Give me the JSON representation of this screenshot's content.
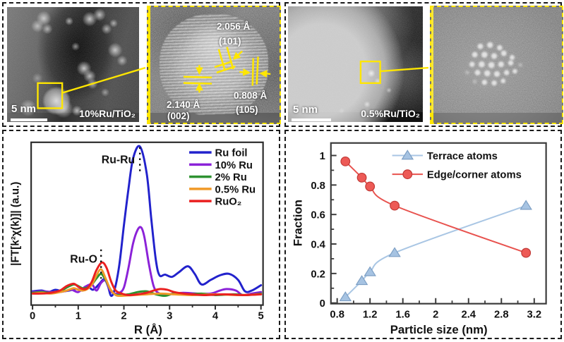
{
  "figure": {
    "accent_yellow": "#ffe600",
    "panels": {
      "tem_10ru": {
        "scale_bar": "5 nm",
        "sample_label": "10%Ru/TiO₂"
      },
      "hrtem_10ru": {
        "lattice_annotations": [
          {
            "spacing": "2.056 Å",
            "plane": "(101)"
          },
          {
            "spacing": "0.808 Å",
            "plane": "(105)"
          },
          {
            "spacing": "2.140 Å",
            "plane": "(002)"
          }
        ]
      },
      "tem_05ru": {
        "scale_bar": "5 nm",
        "sample_label": "0.5%Ru/TiO₂"
      },
      "haadf_05ru": {}
    }
  },
  "chart_data": [
    {
      "type": "line",
      "title": "",
      "xlabel": "R (Å)",
      "ylabel": "|FT[k²χ(k)]| (a.u.)",
      "xlim": [
        0,
        5
      ],
      "ylim": [
        0,
        1.05
      ],
      "xticks": [
        0,
        1,
        2,
        3,
        4,
        5
      ],
      "grid": false,
      "legend_position": "top-right",
      "annotations": [
        {
          "text": "Ru-Ru",
          "x": 2.35,
          "style": "dotted-vline"
        },
        {
          "text": "Ru-O",
          "x": 1.5,
          "style": "dotted-vline"
        }
      ],
      "series": [
        {
          "name": "Ru foil",
          "color": "#2222cc",
          "points": [
            [
              0,
              0.045
            ],
            [
              0.2,
              0.05
            ],
            [
              0.35,
              0.04
            ],
            [
              0.5,
              0.055
            ],
            [
              0.65,
              0.045
            ],
            [
              0.8,
              0.05
            ],
            [
              0.95,
              0.06
            ],
            [
              1.1,
              0.05
            ],
            [
              1.2,
              0.08
            ],
            [
              1.32,
              0.055
            ],
            [
              1.45,
              0.09
            ],
            [
              1.57,
              0.125
            ],
            [
              1.65,
              0.08
            ],
            [
              1.72,
              0.015
            ],
            [
              1.8,
              0.06
            ],
            [
              1.9,
              0.22
            ],
            [
              2.0,
              0.48
            ],
            [
              2.1,
              0.72
            ],
            [
              2.2,
              0.92
            ],
            [
              2.35,
              1.0
            ],
            [
              2.5,
              0.82
            ],
            [
              2.6,
              0.52
            ],
            [
              2.7,
              0.25
            ],
            [
              2.78,
              0.15
            ],
            [
              2.9,
              0.155
            ],
            [
              3.05,
              0.14
            ],
            [
              3.2,
              0.17
            ],
            [
              3.4,
              0.21
            ],
            [
              3.55,
              0.16
            ],
            [
              3.7,
              0.09
            ],
            [
              3.9,
              0.12
            ],
            [
              4.1,
              0.15
            ],
            [
              4.3,
              0.16
            ],
            [
              4.5,
              0.12
            ],
            [
              4.65,
              0.045
            ],
            [
              4.8,
              0.05
            ],
            [
              5,
              0.085
            ]
          ]
        },
        {
          "name": "10% Ru",
          "color": "#8b22d8",
          "points": [
            [
              0,
              0.04
            ],
            [
              0.25,
              0.045
            ],
            [
              0.5,
              0.038
            ],
            [
              0.7,
              0.045
            ],
            [
              0.85,
              0.055
            ],
            [
              1.0,
              0.04
            ],
            [
              1.15,
              0.075
            ],
            [
              1.3,
              0.09
            ],
            [
              1.4,
              0.05
            ],
            [
              1.5,
              0.1
            ],
            [
              1.6,
              0.115
            ],
            [
              1.7,
              0.05
            ],
            [
              1.8,
              0.03
            ],
            [
              1.9,
              0.035
            ],
            [
              2.0,
              0.07
            ],
            [
              2.1,
              0.2
            ],
            [
              2.2,
              0.36
            ],
            [
              2.3,
              0.45
            ],
            [
              2.38,
              0.465
            ],
            [
              2.45,
              0.4
            ],
            [
              2.55,
              0.22
            ],
            [
              2.65,
              0.08
            ],
            [
              2.75,
              0.035
            ],
            [
              2.9,
              0.025
            ],
            [
              3.1,
              0.03
            ],
            [
              3.3,
              0.035
            ],
            [
              3.6,
              0.03
            ],
            [
              3.9,
              0.03
            ],
            [
              4.1,
              0.05
            ],
            [
              4.25,
              0.06
            ],
            [
              4.45,
              0.05
            ],
            [
              4.6,
              0.02
            ],
            [
              4.8,
              0.03
            ],
            [
              5,
              0.04
            ]
          ]
        },
        {
          "name": "2% Ru",
          "color": "#2d9230",
          "points": [
            [
              0,
              0.035
            ],
            [
              0.2,
              0.04
            ],
            [
              0.4,
              0.035
            ],
            [
              0.6,
              0.045
            ],
            [
              0.75,
              0.07
            ],
            [
              0.9,
              0.09
            ],
            [
              1.0,
              0.08
            ],
            [
              1.1,
              0.065
            ],
            [
              1.2,
              0.07
            ],
            [
              1.3,
              0.09
            ],
            [
              1.4,
              0.13
            ],
            [
              1.5,
              0.16
            ],
            [
              1.6,
              0.12
            ],
            [
              1.7,
              0.06
            ],
            [
              1.8,
              0.025
            ],
            [
              1.9,
              0.02
            ],
            [
              2.1,
              0.025
            ],
            [
              2.3,
              0.04
            ],
            [
              2.5,
              0.045
            ],
            [
              2.7,
              0.025
            ],
            [
              2.9,
              0.015
            ],
            [
              3.1,
              0.03
            ],
            [
              3.4,
              0.025
            ],
            [
              3.7,
              0.03
            ],
            [
              4.0,
              0.02
            ],
            [
              4.4,
              0.025
            ],
            [
              4.7,
              0.02
            ],
            [
              5,
              0.03
            ]
          ]
        },
        {
          "name": "0.5% Ru",
          "color": "#f09a28",
          "points": [
            [
              0,
              0.03
            ],
            [
              0.2,
              0.035
            ],
            [
              0.4,
              0.03
            ],
            [
              0.6,
              0.04
            ],
            [
              0.75,
              0.05
            ],
            [
              0.9,
              0.065
            ],
            [
              1.0,
              0.055
            ],
            [
              1.1,
              0.05
            ],
            [
              1.2,
              0.06
            ],
            [
              1.3,
              0.09
            ],
            [
              1.4,
              0.15
            ],
            [
              1.5,
              0.19
            ],
            [
              1.6,
              0.13
            ],
            [
              1.7,
              0.06
            ],
            [
              1.8,
              0.025
            ],
            [
              1.9,
              0.015
            ],
            [
              2.2,
              0.02
            ],
            [
              2.5,
              0.025
            ],
            [
              2.8,
              0.03
            ],
            [
              3.1,
              0.025
            ],
            [
              3.5,
              0.02
            ],
            [
              4.0,
              0.025
            ],
            [
              4.5,
              0.02
            ],
            [
              5,
              0.025
            ]
          ]
        },
        {
          "name": "RuO₂",
          "color": "#ea2020",
          "points": [
            [
              0,
              0.03
            ],
            [
              0.2,
              0.03
            ],
            [
              0.4,
              0.035
            ],
            [
              0.6,
              0.05
            ],
            [
              0.75,
              0.08
            ],
            [
              0.9,
              0.095
            ],
            [
              1.0,
              0.075
            ],
            [
              1.1,
              0.06
            ],
            [
              1.2,
              0.065
            ],
            [
              1.3,
              0.11
            ],
            [
              1.4,
              0.185
            ],
            [
              1.52,
              0.235
            ],
            [
              1.62,
              0.2
            ],
            [
              1.72,
              0.11
            ],
            [
              1.82,
              0.05
            ],
            [
              1.95,
              0.03
            ],
            [
              2.1,
              0.02
            ],
            [
              2.3,
              0.025
            ],
            [
              2.5,
              0.035
            ],
            [
              2.65,
              0.05
            ],
            [
              2.8,
              0.06
            ],
            [
              2.95,
              0.055
            ],
            [
              3.1,
              0.04
            ],
            [
              3.3,
              0.03
            ],
            [
              3.5,
              0.025
            ],
            [
              3.8,
              0.02
            ],
            [
              4.2,
              0.025
            ],
            [
              4.6,
              0.02
            ],
            [
              5,
              0.025
            ]
          ]
        }
      ]
    },
    {
      "type": "scatter-line",
      "title": "",
      "xlabel": "Particle size (nm)",
      "ylabel": "Fraction",
      "xlim": [
        0.7,
        3.35
      ],
      "ylim": [
        0,
        1.09
      ],
      "xticks": [
        0.8,
        1.2,
        1.6,
        2,
        2.4,
        2.8,
        3.2
      ],
      "yticks": [
        0,
        0.2,
        0.4,
        0.6,
        0.8,
        1
      ],
      "grid": false,
      "legend_position": "top-center",
      "x": [
        0.9,
        1.1,
        1.2,
        1.5,
        3.1
      ],
      "series": [
        {
          "name": "Terrace atoms",
          "marker": "triangle",
          "color": "#a9c6e4",
          "marker_fill": "#a6c3e2",
          "marker_edge": "#7d9fc4",
          "values": [
            0.04,
            0.15,
            0.21,
            0.34,
            0.66
          ]
        },
        {
          "name": "Edge/corner atoms",
          "marker": "circle",
          "color": "#e8524e",
          "marker_fill": "#ed5a56",
          "marker_edge": "#c03936",
          "values": [
            0.96,
            0.85,
            0.79,
            0.66,
            0.34
          ]
        }
      ]
    }
  ]
}
